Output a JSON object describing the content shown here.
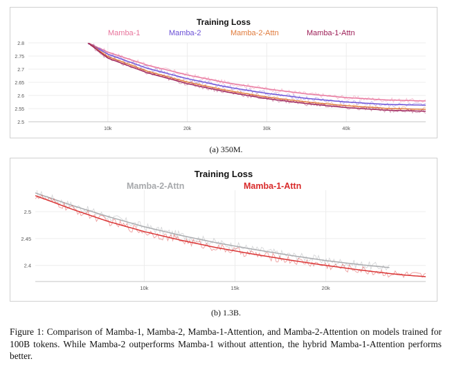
{
  "chart_data": [
    {
      "type": "line",
      "title": "Training Loss",
      "xlabel": "",
      "ylabel": "",
      "ylim": [
        2.5,
        2.8
      ],
      "xlim": [
        0,
        50000
      ],
      "y_ticks": [
        "2.8",
        "2.75",
        "2.7",
        "2.65",
        "2.6",
        "2.55",
        "2.5"
      ],
      "x_ticks": [
        "10k",
        "20k",
        "30k",
        "40k"
      ],
      "grid": true,
      "legend": "top",
      "series": [
        {
          "name": "Mamba-1",
          "color": "#e8749c",
          "x": [
            7500,
            10000,
            15000,
            20000,
            25000,
            30000,
            35000,
            40000,
            45000,
            50000
          ],
          "y": [
            2.8,
            2.765,
            2.715,
            2.678,
            2.648,
            2.625,
            2.606,
            2.592,
            2.583,
            2.579
          ]
        },
        {
          "name": "Mamba-2",
          "color": "#6a4fd6",
          "x": [
            7500,
            10000,
            15000,
            20000,
            25000,
            30000,
            35000,
            40000,
            45000,
            50000
          ],
          "y": [
            2.8,
            2.757,
            2.703,
            2.664,
            2.632,
            2.608,
            2.589,
            2.575,
            2.566,
            2.563
          ]
        },
        {
          "name": "Mamba-2-Attn",
          "color": "#e07a3a",
          "x": [
            7500,
            10000,
            15000,
            20000,
            25000,
            30000,
            35000,
            40000,
            45000,
            50000
          ],
          "y": [
            2.8,
            2.748,
            2.692,
            2.651,
            2.619,
            2.594,
            2.575,
            2.561,
            2.551,
            2.547
          ]
        },
        {
          "name": "Mamba-1-Attn",
          "color": "#9c1d56",
          "x": [
            7500,
            10000,
            15000,
            20000,
            25000,
            30000,
            35000,
            40000,
            45000,
            50000
          ],
          "y": [
            2.8,
            2.742,
            2.686,
            2.645,
            2.613,
            2.588,
            2.569,
            2.554,
            2.544,
            2.54
          ]
        }
      ],
      "caption": "(a) 350M."
    },
    {
      "type": "line",
      "title": "Training Loss",
      "xlabel": "",
      "ylabel": "",
      "ylim": [
        2.37,
        2.54
      ],
      "xlim": [
        4000,
        25500
      ],
      "y_ticks": [
        "2.5",
        "2.45",
        "2.4"
      ],
      "x_ticks": [
        "10k",
        "15k",
        "20k"
      ],
      "grid": true,
      "legend": "top",
      "series": [
        {
          "name": "Mamba-2-Attn",
          "color": "#a7a9ac",
          "x": [
            4000,
            6000,
            8000,
            10000,
            12000,
            14000,
            16000,
            18000,
            20000,
            22000,
            23500
          ],
          "y": [
            2.535,
            2.512,
            2.491,
            2.472,
            2.456,
            2.442,
            2.43,
            2.419,
            2.409,
            2.401,
            2.396
          ]
        },
        {
          "name": "Mamba-1-Attn",
          "color": "#d82a2a",
          "x": [
            4000,
            6000,
            8000,
            10000,
            12000,
            14000,
            16000,
            18000,
            20000,
            22000,
            24000,
            25500
          ],
          "y": [
            2.53,
            2.505,
            2.482,
            2.463,
            2.447,
            2.433,
            2.421,
            2.41,
            2.4,
            2.391,
            2.383,
            2.379
          ]
        }
      ],
      "caption": "(b) 1.3B."
    }
  ],
  "figure_caption": "Figure 1: Comparison of Mamba-1, Mamba-2, Mamba-1-Attention, and Mamba-2-Attention on models trained for 100B tokens. While Mamba-2 outperforms Mamba-1 without attention, the hybrid Mamba-1-Attention performs better."
}
